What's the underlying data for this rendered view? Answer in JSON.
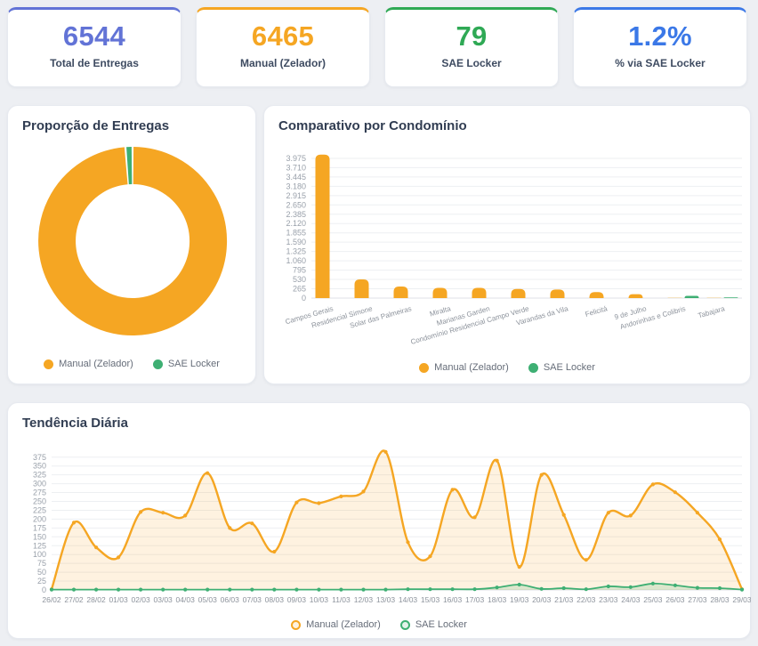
{
  "cards": [
    {
      "value": "6544",
      "label": "Total de Entregas",
      "accent": "#6273D6"
    },
    {
      "value": "6465",
      "label": "Manual (Zelador)",
      "accent": "#F5A623"
    },
    {
      "value": "79",
      "label": "SAE Locker",
      "accent": "#2FA955"
    },
    {
      "value": "1.2%",
      "label": "% via SAE Locker",
      "accent": "#3B78E7"
    }
  ],
  "panels": {
    "donut": {
      "title": "Proporção de Entregas"
    },
    "bar": {
      "title": "Comparativo por Condomínio"
    },
    "line": {
      "title": "Tendência Diária"
    }
  },
  "chart_data": [
    {
      "id": "proporcao-de-entregas",
      "type": "pie",
      "subtype": "doughnut",
      "title": "Proporção de Entregas",
      "labels": [
        "Manual (Zelador)",
        "SAE Locker"
      ],
      "values": [
        6465,
        79
      ],
      "percentages": [
        98.8,
        1.2
      ],
      "colors": [
        "#F5A623",
        "#3EAF73"
      ],
      "legend_position": "bottom",
      "legend": [
        {
          "label": "Manual (Zelador)",
          "color": "#F5A623",
          "style": "solid"
        },
        {
          "label": "SAE Locker",
          "color": "#3EAF73",
          "style": "solid"
        }
      ]
    },
    {
      "id": "comparativo-por-condominio",
      "type": "bar",
      "title": "Comparativo por Condomínio",
      "categories": [
        "Campos Gerais",
        "Residencial Simone",
        "Solar das Palmeiras",
        "Miralta",
        "Marianas Garden",
        "Condomínio Residencial Campo Verde",
        "Varandas da Vila",
        "Felicitá",
        "9 de Julho",
        "Andorinhas e Colibris",
        "Tabajara"
      ],
      "series": [
        {
          "name": "Manual (Zelador)",
          "color": "#F5A623",
          "values": [
            4080,
            530,
            330,
            290,
            290,
            260,
            245,
            170,
            110,
            5,
            5
          ]
        },
        {
          "name": "SAE Locker",
          "color": "#3EAF73",
          "values": [
            0,
            0,
            0,
            0,
            0,
            0,
            0,
            0,
            0,
            62,
            20
          ]
        }
      ],
      "ylim": [
        0,
        4100
      ],
      "grid": true,
      "legend_position": "bottom",
      "yticks": [
        {
          "v": 0,
          "label": "0"
        },
        {
          "v": 265,
          "label": "265"
        },
        {
          "v": 530,
          "label": "530"
        },
        {
          "v": 795,
          "label": "795"
        },
        {
          "v": 1060,
          "label": "1.060"
        },
        {
          "v": 1325,
          "label": "1.325"
        },
        {
          "v": 1590,
          "label": "1.590"
        },
        {
          "v": 1855,
          "label": "1.855"
        },
        {
          "v": 2120,
          "label": "2.120"
        },
        {
          "v": 2385,
          "label": "2.385"
        },
        {
          "v": 2650,
          "label": "2.650"
        },
        {
          "v": 2915,
          "label": "2.915"
        },
        {
          "v": 3180,
          "label": "3.180"
        },
        {
          "v": 3445,
          "label": "3.445"
        },
        {
          "v": 3710,
          "label": "3.710"
        },
        {
          "v": 3975,
          "label": "3.975"
        }
      ],
      "legend": [
        {
          "label": "Manual (Zelador)",
          "color": "#F5A623",
          "style": "solid"
        },
        {
          "label": "SAE Locker",
          "color": "#3EAF73",
          "style": "solid"
        }
      ]
    },
    {
      "id": "tendencia-diaria",
      "type": "area",
      "title": "Tendência Diária",
      "x": [
        "26/02",
        "27/02",
        "28/02",
        "01/03",
        "02/03",
        "03/03",
        "04/03",
        "05/03",
        "06/03",
        "07/03",
        "08/03",
        "09/03",
        "10/03",
        "11/03",
        "12/03",
        "13/03",
        "14/03",
        "15/03",
        "16/03",
        "17/03",
        "18/03",
        "19/03",
        "20/03",
        "21/03",
        "22/03",
        "23/03",
        "24/03",
        "25/03",
        "26/03",
        "27/03",
        "28/03",
        "29/03"
      ],
      "series": [
        {
          "name": "Manual (Zelador)",
          "color": "#F5A623",
          "fill": "rgba(245,166,35,0.14)",
          "values": [
            2,
            190,
            120,
            92,
            220,
            218,
            210,
            330,
            175,
            188,
            108,
            247,
            245,
            264,
            278,
            390,
            135,
            95,
            283,
            205,
            365,
            65,
            325,
            212,
            85,
            218,
            210,
            298,
            276,
            218,
            143,
            2
          ]
        },
        {
          "name": "SAE Locker",
          "color": "#3EAF73",
          "fill": "rgba(62,175,115,0.18)",
          "values": [
            1,
            1,
            1,
            1,
            1,
            1,
            1,
            1,
            1,
            1,
            1,
            1,
            1,
            1,
            1,
            1,
            2,
            2,
            2,
            2,
            7,
            15,
            3,
            5,
            2,
            10,
            8,
            18,
            13,
            6,
            5,
            1
          ]
        }
      ],
      "ylim": [
        0,
        392
      ],
      "grid": true,
      "legend_position": "bottom",
      "yticks": [
        0,
        25,
        50,
        75,
        100,
        125,
        150,
        175,
        200,
        225,
        250,
        275,
        300,
        325,
        350,
        375
      ],
      "legend": [
        {
          "label": "Manual (Zelador)",
          "color": "#F5A623",
          "style": "outline"
        },
        {
          "label": "SAE Locker",
          "color": "#3EAF73",
          "style": "outline"
        }
      ]
    }
  ]
}
